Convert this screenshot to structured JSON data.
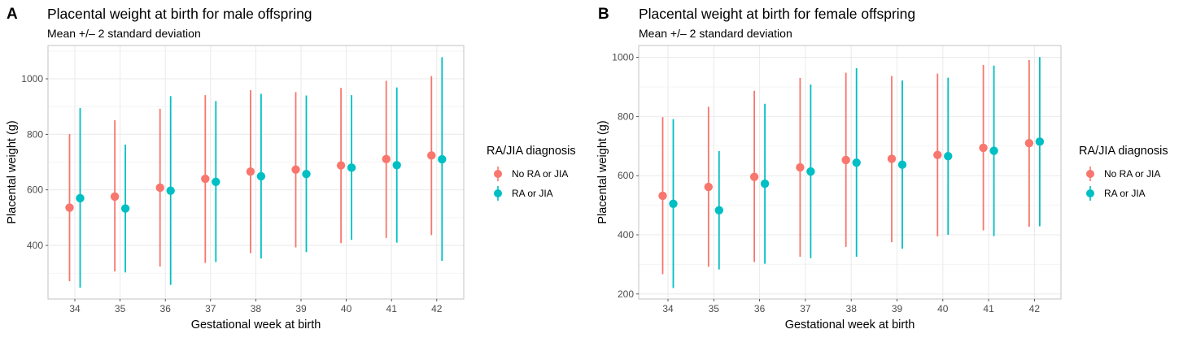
{
  "colors": {
    "no_ra_jia": "#F8766D",
    "ra_jia": "#00BFC4"
  },
  "chart_data": [
    {
      "type": "errorbar",
      "panel_label": "A",
      "title": "Placental weight at birth for male offspring",
      "subtitle": "Mean +/– 2 standard deviation",
      "xlabel": "Gestational week at birth",
      "ylabel": "Placental weight (g)",
      "x": [
        34,
        35,
        36,
        37,
        38,
        39,
        40,
        41,
        42
      ],
      "x_tick_labels": [
        "34",
        "35",
        "36",
        "37",
        "38",
        "39",
        "40",
        "41",
        "42"
      ],
      "y_ticks": [
        400,
        600,
        800,
        1000
      ],
      "y_tick_labels": [
        "400",
        "600",
        "800",
        "1000"
      ],
      "y_minor_ticks": [
        300,
        500,
        700,
        900,
        1100
      ],
      "ylim": [
        207,
        1120
      ],
      "grid": true,
      "legend": {
        "title": "RA/JIA diagnosis",
        "position": "right",
        "entries": [
          "No RA or JIA",
          "RA or JIA"
        ]
      },
      "series": [
        {
          "name": "No RA or JIA",
          "mean": [
            536,
            576,
            608,
            640,
            666,
            673,
            688,
            711,
            724
          ],
          "lower": [
            271,
            306,
            324,
            337,
            372,
            393,
            408,
            427,
            437
          ],
          "upper": [
            801,
            851,
            892,
            941,
            959,
            952,
            967,
            993,
            1010
          ]
        },
        {
          "name": "RA or JIA",
          "mean": [
            570,
            533,
            597,
            629,
            649,
            657,
            680,
            689,
            710
          ],
          "lower": [
            248,
            303,
            258,
            340,
            353,
            376,
            420,
            410,
            344
          ],
          "upper": [
            895,
            763,
            938,
            920,
            946,
            940,
            941,
            969,
            1078
          ]
        }
      ]
    },
    {
      "type": "errorbar",
      "panel_label": "B",
      "title": "Placental weight at birth for female offspring",
      "subtitle": "Mean +/– 2 standard deviation",
      "xlabel": "Gestational week at birth",
      "ylabel": "Placental weight (g)",
      "x": [
        34,
        35,
        36,
        37,
        38,
        39,
        40,
        41,
        42
      ],
      "x_tick_labels": [
        "34",
        "35",
        "36",
        "37",
        "38",
        "39",
        "40",
        "41",
        "42"
      ],
      "y_ticks": [
        200,
        400,
        600,
        800,
        1000
      ],
      "y_tick_labels": [
        "200",
        "400",
        "600",
        "800",
        "1000"
      ],
      "y_minor_ticks": [
        300,
        500,
        700,
        900
      ],
      "ylim": [
        183,
        1040
      ],
      "grid": true,
      "legend": {
        "title": "RA/JIA diagnosis",
        "position": "right",
        "entries": [
          "No RA or JIA",
          "RA or JIA"
        ]
      },
      "series": [
        {
          "name": "No RA or JIA",
          "mean": [
            532,
            562,
            596,
            628,
            653,
            657,
            670,
            694,
            710
          ],
          "lower": [
            267,
            292,
            308,
            326,
            359,
            375,
            395,
            415,
            427
          ],
          "upper": [
            798,
            833,
            887,
            930,
            948,
            937,
            945,
            974,
            991
          ]
        },
        {
          "name": "RA or JIA",
          "mean": [
            505,
            483,
            573,
            614,
            644,
            637,
            666,
            684,
            715
          ],
          "lower": [
            220,
            283,
            302,
            321,
            326,
            353,
            400,
            396,
            429
          ],
          "upper": [
            791,
            683,
            843,
            908,
            963,
            922,
            931,
            972,
            1001
          ]
        }
      ]
    }
  ]
}
